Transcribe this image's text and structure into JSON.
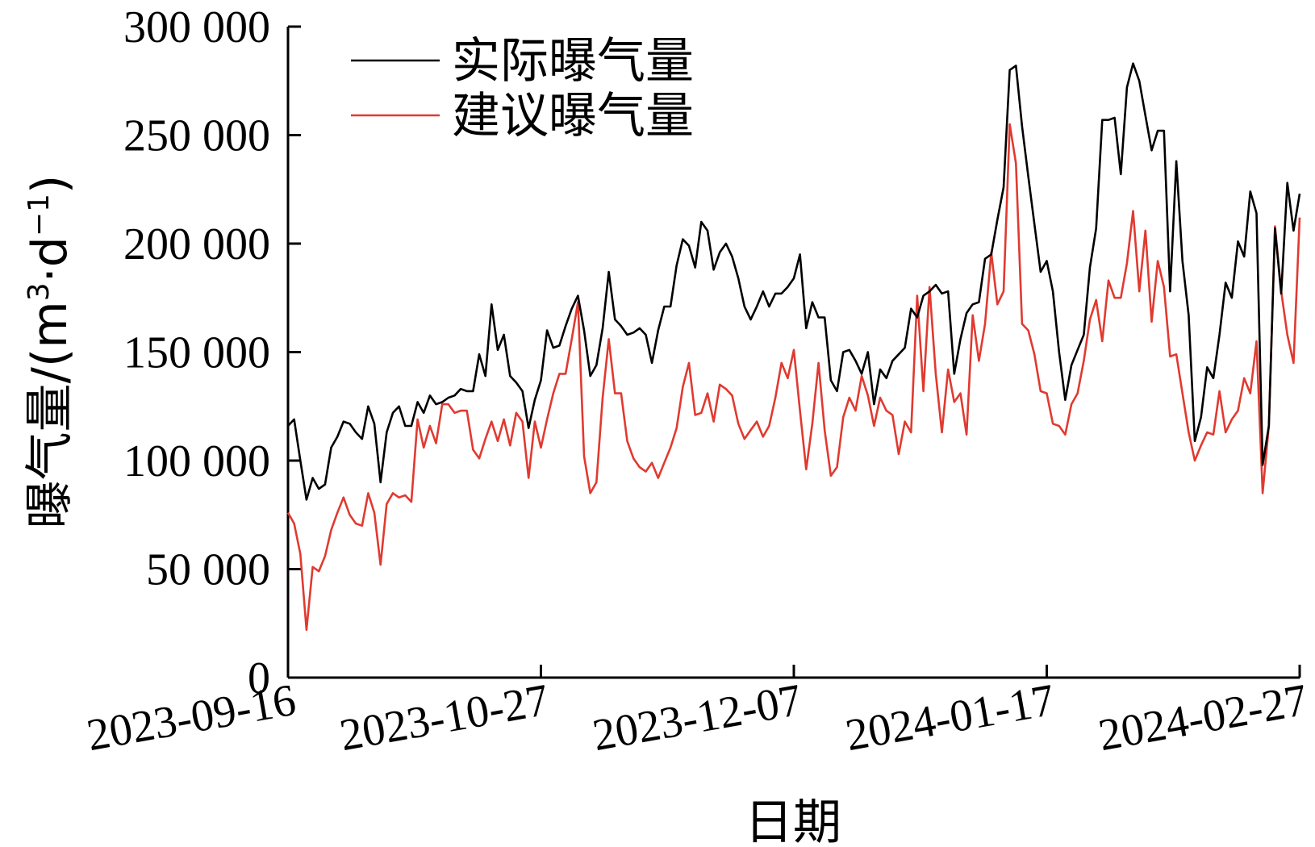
{
  "chart_data": {
    "type": "line",
    "xlabel": "日期",
    "ylabel": "曝气量/(m³·d⁻¹)",
    "ylabel_main": "曝气量/(m",
    "ylabel_sup1": "3",
    "ylabel_mid": "·d",
    "ylabel_sup2": "−1",
    "ylabel_end": ")",
    "ylim": [
      0,
      300000
    ],
    "yticks": [
      0,
      50000,
      100000,
      150000,
      200000,
      250000,
      300000
    ],
    "ytick_labels": [
      "0",
      "50 000",
      "100 000",
      "150 000",
      "200 000",
      "250 000",
      "300 000"
    ],
    "x_start": "2023-09-16",
    "x_end": "2024-02-27",
    "xticks": [
      "2023-09-16",
      "2023-10-27",
      "2023-12-07",
      "2024-01-17",
      "2024-02-27"
    ],
    "legend_position": "top-left",
    "grid": false,
    "series": [
      {
        "name": "实际曝气量",
        "color": "#000000",
        "values": [
          116000,
          119000,
          100000,
          82000,
          92000,
          87000,
          89000,
          106000,
          111000,
          118000,
          117000,
          113000,
          110000,
          125000,
          117000,
          90000,
          113000,
          122000,
          125000,
          116000,
          116000,
          127000,
          122000,
          130000,
          126000,
          127000,
          129000,
          130000,
          133000,
          132000,
          132000,
          149000,
          139000,
          172000,
          151000,
          158000,
          139000,
          136000,
          132000,
          115000,
          128000,
          137000,
          160000,
          152000,
          153000,
          162000,
          170000,
          176000,
          160000,
          139000,
          144000,
          161000,
          187000,
          165000,
          162000,
          158000,
          159000,
          161000,
          158000,
          145000,
          160000,
          171000,
          171000,
          190000,
          202000,
          199000,
          189000,
          210000,
          206000,
          188000,
          196000,
          200000,
          194000,
          184000,
          171000,
          165000,
          171000,
          178000,
          171000,
          177000,
          177000,
          180000,
          184000,
          195000,
          161000,
          173000,
          166000,
          166000,
          137000,
          132000,
          150000,
          151000,
          146000,
          140000,
          150000,
          126000,
          142000,
          138000,
          146000,
          149000,
          152000,
          170000,
          166000,
          176000,
          178000,
          181000,
          177000,
          178000,
          140000,
          156000,
          168000,
          172000,
          173000,
          193000,
          195000,
          211000,
          226000,
          280000,
          282000,
          254000,
          231000,
          209000,
          187000,
          192000,
          178000,
          150000,
          128000,
          144000,
          151000,
          158000,
          189000,
          207000,
          257000,
          257000,
          258000,
          232000,
          272000,
          283000,
          275000,
          259000,
          243000,
          252000,
          252000,
          178000,
          238000,
          192000,
          167000,
          109000,
          120000,
          143000,
          138000,
          158000,
          182000,
          175000,
          201000,
          194000,
          224000,
          214000,
          98000,
          116000,
          207000,
          177000,
          228000,
          206000,
          223000
        ]
      },
      {
        "name": "建议曝气量",
        "color": "#e03a30",
        "values": [
          76000,
          71000,
          57000,
          22000,
          51000,
          49000,
          56000,
          68000,
          76000,
          83000,
          75000,
          71000,
          70000,
          85000,
          76000,
          52000,
          80000,
          85000,
          83000,
          84000,
          81000,
          119000,
          106000,
          116000,
          108000,
          126000,
          126000,
          122000,
          123000,
          123000,
          105000,
          101000,
          110000,
          118000,
          109000,
          119000,
          107000,
          122000,
          118000,
          92000,
          118000,
          106000,
          119000,
          131000,
          140000,
          140000,
          156000,
          173000,
          102000,
          85000,
          90000,
          129000,
          156000,
          131000,
          131000,
          109000,
          101000,
          97000,
          95000,
          99000,
          92000,
          99000,
          106000,
          115000,
          134000,
          145000,
          121000,
          122000,
          131000,
          118000,
          135000,
          133000,
          130000,
          117000,
          110000,
          114000,
          118000,
          111000,
          116000,
          129000,
          145000,
          138000,
          151000,
          123000,
          96000,
          117000,
          145000,
          114000,
          93000,
          97000,
          120000,
          129000,
          123000,
          139000,
          130000,
          116000,
          129000,
          123000,
          121000,
          103000,
          118000,
          113000,
          176000,
          132000,
          180000,
          140000,
          113000,
          142000,
          127000,
          131000,
          112000,
          167000,
          146000,
          163000,
          196000,
          172000,
          178000,
          255000,
          237000,
          163000,
          160000,
          149000,
          132000,
          131000,
          117000,
          116000,
          112000,
          126000,
          131000,
          146000,
          165000,
          174000,
          155000,
          183000,
          175000,
          175000,
          191000,
          215000,
          178000,
          206000,
          164000,
          192000,
          180000,
          148000,
          149000,
          131000,
          113000,
          100000,
          107000,
          113000,
          112000,
          132000,
          113000,
          119000,
          123000,
          138000,
          131000,
          155000,
          85000,
          116000,
          208000,
          178000,
          158000,
          145000,
          212000
        ]
      }
    ]
  }
}
